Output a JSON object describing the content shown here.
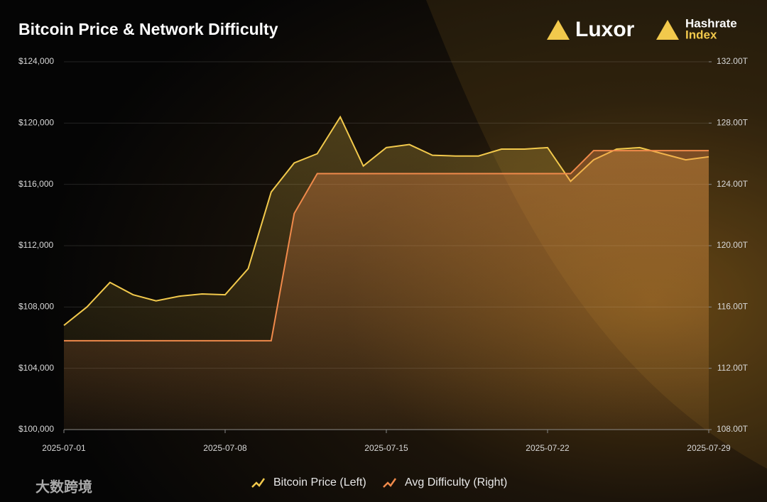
{
  "chart_data": {
    "type": "line",
    "title": "Bitcoin Price & Network Difficulty",
    "brand": "Luxor",
    "brand2": [
      "Hashrate",
      "Index"
    ],
    "watermark": "大数跨境",
    "x": [
      "2025-07-01",
      "2025-07-02",
      "2025-07-03",
      "2025-07-04",
      "2025-07-05",
      "2025-07-06",
      "2025-07-07",
      "2025-07-08",
      "2025-07-09",
      "2025-07-10",
      "2025-07-11",
      "2025-07-12",
      "2025-07-13",
      "2025-07-14",
      "2025-07-15",
      "2025-07-16",
      "2025-07-17",
      "2025-07-18",
      "2025-07-19",
      "2025-07-20",
      "2025-07-21",
      "2025-07-22",
      "2025-07-23",
      "2025-07-24",
      "2025-07-25",
      "2025-07-26",
      "2025-07-27",
      "2025-07-28",
      "2025-07-29"
    ],
    "xlim": [
      "2025-07-01",
      "2025-07-29"
    ],
    "xticks": [
      "2025-07-01",
      "2025-07-08",
      "2025-07-15",
      "2025-07-22",
      "2025-07-29"
    ],
    "series": [
      {
        "name": "Bitcoin Price (Left)",
        "color": "#f2c94c",
        "axis": "y",
        "values": [
          106800,
          108000,
          109600,
          108800,
          108400,
          108700,
          108850,
          108800,
          110500,
          115500,
          117400,
          118000,
          120400,
          117200,
          118400,
          118600,
          117900,
          117850,
          117850,
          118300,
          118300,
          118400,
          116200,
          117600,
          118300,
          118400,
          118000,
          117600,
          117800
        ]
      },
      {
        "name": "Avg Difficulty (Right)",
        "color": "#f08a4b",
        "axis": "y2",
        "values": [
          113.8,
          113.8,
          113.8,
          113.8,
          113.8,
          113.8,
          113.8,
          113.8,
          113.8,
          113.8,
          122.1,
          124.7,
          124.7,
          124.7,
          124.7,
          124.7,
          124.7,
          124.7,
          124.7,
          124.7,
          124.7,
          124.7,
          124.7,
          126.2,
          126.2,
          126.2,
          126.2,
          126.2,
          126.2
        ]
      }
    ],
    "ylim": [
      100000,
      124000
    ],
    "yticks": [
      {
        "value": 100000,
        "label": "$100,000"
      },
      {
        "value": 104000,
        "label": "$104,000"
      },
      {
        "value": 108000,
        "label": "$108,000"
      },
      {
        "value": 112000,
        "label": "$112,000"
      },
      {
        "value": 116000,
        "label": "$116,000"
      },
      {
        "value": 120000,
        "label": "$120,000"
      },
      {
        "value": 124000,
        "label": "$124,000"
      }
    ],
    "y2lim": [
      108,
      132
    ],
    "y2ticks": [
      {
        "value": 108,
        "label": "108.00T"
      },
      {
        "value": 112,
        "label": "112.00T"
      },
      {
        "value": 116,
        "label": "116.00T"
      },
      {
        "value": 120,
        "label": "120.00T"
      },
      {
        "value": 124,
        "label": "124.00T"
      },
      {
        "value": 128,
        "label": "128.00T"
      },
      {
        "value": 132,
        "label": "132.00T"
      }
    ],
    "grid": true
  }
}
